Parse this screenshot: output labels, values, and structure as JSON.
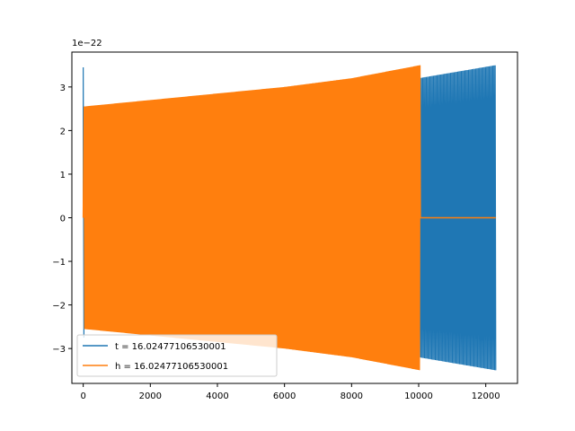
{
  "chart_data": {
    "type": "line",
    "title": "",
    "xlabel": "",
    "ylabel": "",
    "y_scale_label": "1e−22",
    "xlim": [
      -338.5,
      12946
    ],
    "ylim": [
      -3.8,
      3.8
    ],
    "xticks": [
      0,
      2000,
      4000,
      6000,
      8000,
      10000,
      12000
    ],
    "yticks": [
      -3,
      -2,
      -1,
      0,
      1,
      2,
      3
    ],
    "xtick_labels": [
      "0",
      "2000",
      "4000",
      "6000",
      "8000",
      "10000",
      "12000"
    ],
    "ytick_labels": [
      "−3",
      "−2",
      "−1",
      "0",
      "1",
      "2",
      "3"
    ],
    "grid": false,
    "legend_position": "lower-left",
    "series": [
      {
        "name": "t = 16.02477106530001",
        "color": "#1f77b4",
        "x_range": [
          0,
          12300
        ],
        "initial_spike": [
          3.45,
          -2.75
        ],
        "envelope": [
          [
            0,
            2.55
          ],
          [
            2000,
            2.65
          ],
          [
            4000,
            2.75
          ],
          [
            6000,
            2.88
          ],
          [
            8000,
            3.05
          ],
          [
            10000,
            3.2
          ],
          [
            12300,
            3.5
          ]
        ]
      },
      {
        "name": "h = 16.02477106530001",
        "color": "#ff7f0e",
        "x_range": [
          0,
          12300
        ],
        "oscillation_end": 10050,
        "tail_value": 0,
        "envelope": [
          [
            0,
            2.55
          ],
          [
            2000,
            2.7
          ],
          [
            4000,
            2.85
          ],
          [
            6000,
            3.0
          ],
          [
            8000,
            3.2
          ],
          [
            10050,
            3.5
          ]
        ]
      }
    ]
  }
}
